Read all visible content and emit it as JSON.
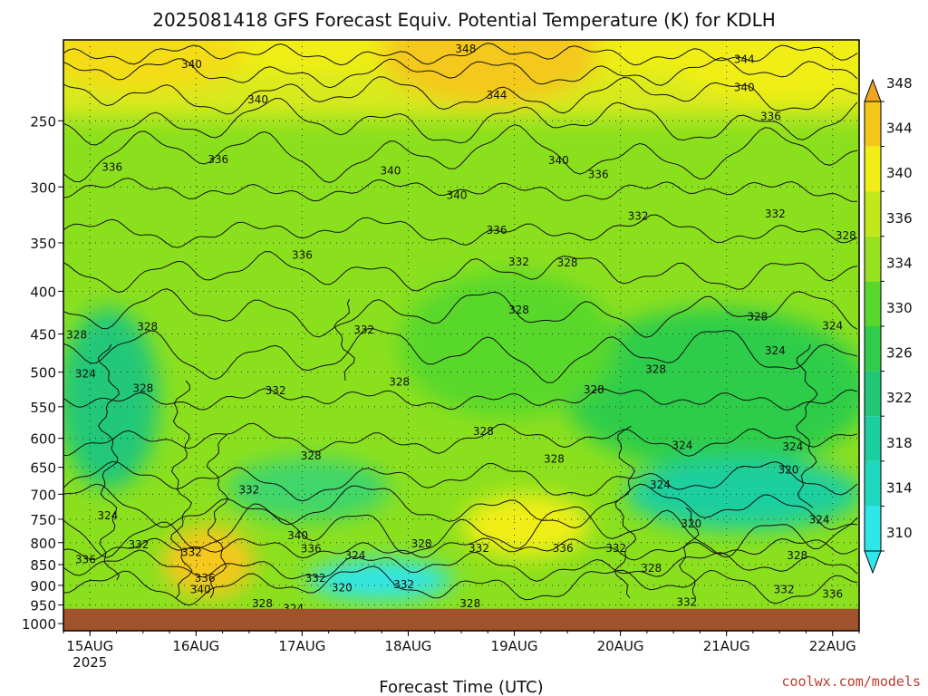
{
  "chart_data": {
    "type": "heatmap",
    "title": "2025081418 GFS Forecast Equiv. Potential Temperature (K) for KDLH",
    "xlabel": "Forecast Time (UTC)",
    "ylabel": "",
    "x_ticks": [
      {
        "label": "15AUG",
        "sub": "2025",
        "hours": 6
      },
      {
        "label": "16AUG",
        "sub": "",
        "hours": 30
      },
      {
        "label": "17AUG",
        "sub": "",
        "hours": 54
      },
      {
        "label": "18AUG",
        "sub": "",
        "hours": 78
      },
      {
        "label": "19AUG",
        "sub": "",
        "hours": 102
      },
      {
        "label": "20AUG",
        "sub": "",
        "hours": 126
      },
      {
        "label": "21AUG",
        "sub": "",
        "hours": 150
      },
      {
        "label": "22AUG",
        "sub": "",
        "hours": 174
      }
    ],
    "x_range_hours": [
      0,
      180
    ],
    "y_ticks_hpa": [
      250,
      300,
      350,
      400,
      450,
      500,
      550,
      600,
      650,
      700,
      750,
      800,
      850,
      900,
      950,
      1000
    ],
    "y_range_hpa": [
      200,
      1020
    ],
    "y_scale": "log",
    "ground_hpa": 960,
    "colorbar": {
      "levels": [
        310,
        314,
        318,
        322,
        326,
        330,
        334,
        336,
        340,
        344,
        348
      ],
      "colors": [
        "#2fe6ea",
        "#20d8c0",
        "#1ccf9e",
        "#22c878",
        "#2ecd4a",
        "#58d82c",
        "#96e21e",
        "#c2e81c",
        "#f0ee14",
        "#f4c81a",
        "#f0a420"
      ],
      "extend": "both"
    },
    "contour_labels": [
      {
        "text": "348",
        "hours": 91,
        "hpa": 205
      },
      {
        "text": "340",
        "hours": 29,
        "hpa": 214
      },
      {
        "text": "344",
        "hours": 154,
        "hpa": 211
      },
      {
        "text": "340",
        "hours": 154,
        "hpa": 228
      },
      {
        "text": "340",
        "hours": 44,
        "hpa": 236
      },
      {
        "text": "344",
        "hours": 98,
        "hpa": 233
      },
      {
        "text": "336",
        "hours": 160,
        "hpa": 247
      },
      {
        "text": "336",
        "hours": 11,
        "hpa": 284
      },
      {
        "text": "336",
        "hours": 35,
        "hpa": 278
      },
      {
        "text": "340",
        "hours": 74,
        "hpa": 287
      },
      {
        "text": "340",
        "hours": 112,
        "hpa": 279
      },
      {
        "text": "336",
        "hours": 121,
        "hpa": 290
      },
      {
        "text": "340",
        "hours": 89,
        "hpa": 307
      },
      {
        "text": "332",
        "hours": 130,
        "hpa": 325
      },
      {
        "text": "332",
        "hours": 161,
        "hpa": 323
      },
      {
        "text": "336",
        "hours": 98,
        "hpa": 338
      },
      {
        "text": "328",
        "hours": 177,
        "hpa": 343
      },
      {
        "text": "336",
        "hours": 54,
        "hpa": 362
      },
      {
        "text": "332",
        "hours": 103,
        "hpa": 369
      },
      {
        "text": "328",
        "hours": 114,
        "hpa": 370
      },
      {
        "text": "328",
        "hours": 103,
        "hpa": 421
      },
      {
        "text": "328",
        "hours": 157,
        "hpa": 429
      },
      {
        "text": "324",
        "hours": 174,
        "hpa": 440
      },
      {
        "text": "328",
        "hours": 3,
        "hpa": 451
      },
      {
        "text": "328",
        "hours": 19,
        "hpa": 441
      },
      {
        "text": "332",
        "hours": 68,
        "hpa": 445
      },
      {
        "text": "324",
        "hours": 161,
        "hpa": 471
      },
      {
        "text": "324",
        "hours": 5,
        "hpa": 502
      },
      {
        "text": "328",
        "hours": 134,
        "hpa": 496
      },
      {
        "text": "328",
        "hours": 76,
        "hpa": 514
      },
      {
        "text": "328",
        "hours": 18,
        "hpa": 523
      },
      {
        "text": "332",
        "hours": 48,
        "hpa": 526
      },
      {
        "text": "328",
        "hours": 120,
        "hpa": 525
      },
      {
        "text": "328",
        "hours": 95,
        "hpa": 589
      },
      {
        "text": "324",
        "hours": 140,
        "hpa": 612
      },
      {
        "text": "324",
        "hours": 165,
        "hpa": 614
      },
      {
        "text": "328",
        "hours": 56,
        "hpa": 630
      },
      {
        "text": "328",
        "hours": 111,
        "hpa": 635
      },
      {
        "text": "320",
        "hours": 164,
        "hpa": 655
      },
      {
        "text": "324",
        "hours": 135,
        "hpa": 682
      },
      {
        "text": "332",
        "hours": 42,
        "hpa": 692
      },
      {
        "text": "324",
        "hours": 10,
        "hpa": 743
      },
      {
        "text": "320",
        "hours": 142,
        "hpa": 760
      },
      {
        "text": "324",
        "hours": 171,
        "hpa": 751
      },
      {
        "text": "340",
        "hours": 53,
        "hpa": 785
      },
      {
        "text": "332",
        "hours": 17,
        "hpa": 804
      },
      {
        "text": "328",
        "hours": 81,
        "hpa": 802
      },
      {
        "text": "336",
        "hours": 56,
        "hpa": 814
      },
      {
        "text": "332",
        "hours": 94,
        "hpa": 813
      },
      {
        "text": "336",
        "hours": 113,
        "hpa": 813
      },
      {
        "text": "332",
        "hours": 125,
        "hpa": 813
      },
      {
        "text": "332",
        "hours": 29,
        "hpa": 822
      },
      {
        "text": "324",
        "hours": 66,
        "hpa": 829
      },
      {
        "text": "336",
        "hours": 5,
        "hpa": 838
      },
      {
        "text": "328",
        "hours": 166,
        "hpa": 829
      },
      {
        "text": "328",
        "hours": 133,
        "hpa": 858
      },
      {
        "text": "336",
        "hours": 32,
        "hpa": 882
      },
      {
        "text": "332",
        "hours": 57,
        "hpa": 882
      },
      {
        "text": "332",
        "hours": 77,
        "hpa": 898
      },
      {
        "text": "320",
        "hours": 63,
        "hpa": 906
      },
      {
        "text": "340",
        "hours": 31,
        "hpa": 910
      },
      {
        "text": "332",
        "hours": 163,
        "hpa": 910
      },
      {
        "text": "336",
        "hours": 174,
        "hpa": 922
      },
      {
        "text": "332",
        "hours": 141,
        "hpa": 943
      },
      {
        "text": "328",
        "hours": 45,
        "hpa": 946
      },
      {
        "text": "328",
        "hours": 92,
        "hpa": 946
      },
      {
        "text": "324",
        "hours": 52,
        "hpa": 959
      }
    ]
  },
  "credit": "coolwx.com/models"
}
